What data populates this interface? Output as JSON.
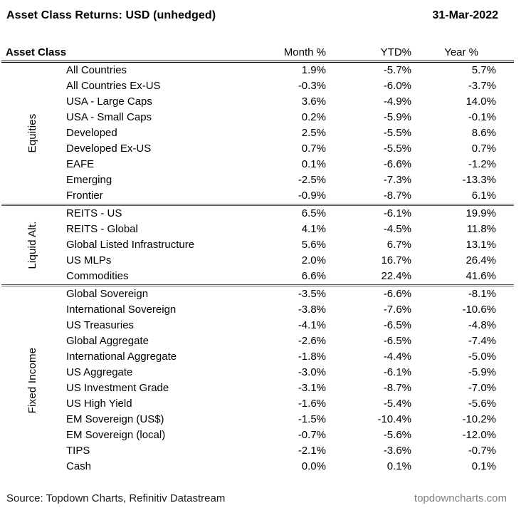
{
  "title": "Asset Class Returns: USD (unhedged)",
  "date": "31-Mar-2022",
  "chart_data": {
    "type": "table",
    "columns": [
      "Asset Class",
      "Month %",
      "YTD%",
      "Year %"
    ],
    "groups": [
      {
        "label": "Equities",
        "rows": [
          {
            "name": "All Countries",
            "month": "1.9%",
            "ytd": "-5.7%",
            "year": "5.7%"
          },
          {
            "name": "All Countries Ex-US",
            "month": "-0.3%",
            "ytd": "-6.0%",
            "year": "-3.7%"
          },
          {
            "name": "USA - Large Caps",
            "month": "3.6%",
            "ytd": "-4.9%",
            "year": "14.0%"
          },
          {
            "name": "USA - Small Caps",
            "month": "0.2%",
            "ytd": "-5.9%",
            "year": "-0.1%"
          },
          {
            "name": "Developed",
            "month": "2.5%",
            "ytd": "-5.5%",
            "year": "8.6%"
          },
          {
            "name": "Developed Ex-US",
            "month": "0.7%",
            "ytd": "-5.5%",
            "year": "0.7%"
          },
          {
            "name": "EAFE",
            "month": "0.1%",
            "ytd": "-6.6%",
            "year": "-1.2%"
          },
          {
            "name": "Emerging",
            "month": "-2.5%",
            "ytd": "-7.3%",
            "year": "-13.3%"
          },
          {
            "name": "Frontier",
            "month": "-0.9%",
            "ytd": "-8.7%",
            "year": "6.1%"
          }
        ]
      },
      {
        "label": "Liquid Alt.",
        "rows": [
          {
            "name": "REITS - US",
            "month": "6.5%",
            "ytd": "-6.1%",
            "year": "19.9%"
          },
          {
            "name": "REITS - Global",
            "month": "4.1%",
            "ytd": "-4.5%",
            "year": "11.8%"
          },
          {
            "name": "Global Listed Infrastructure",
            "month": "5.6%",
            "ytd": "6.7%",
            "year": "13.1%"
          },
          {
            "name": "US MLPs",
            "month": "2.0%",
            "ytd": "16.7%",
            "year": "26.4%"
          },
          {
            "name": "Commodities",
            "month": "6.6%",
            "ytd": "22.4%",
            "year": "41.6%"
          }
        ]
      },
      {
        "label": "Fixed Income",
        "rows": [
          {
            "name": "Global Sovereign",
            "month": "-3.5%",
            "ytd": "-6.6%",
            "year": "-8.1%"
          },
          {
            "name": "International Sovereign",
            "month": "-3.8%",
            "ytd": "-7.6%",
            "year": "-10.6%"
          },
          {
            "name": "US Treasuries",
            "month": "-4.1%",
            "ytd": "-6.5%",
            "year": "-4.8%"
          },
          {
            "name": "Global Aggregate",
            "month": "-2.6%",
            "ytd": "-6.5%",
            "year": "-7.4%"
          },
          {
            "name": "International Aggregate",
            "month": "-1.8%",
            "ytd": "-4.4%",
            "year": "-5.0%"
          },
          {
            "name": "US Aggregate",
            "month": "-3.0%",
            "ytd": "-6.1%",
            "year": "-5.9%"
          },
          {
            "name": "US Investment Grade",
            "month": "-3.1%",
            "ytd": "-8.7%",
            "year": "-7.0%"
          },
          {
            "name": "US High Yield",
            "month": "-1.6%",
            "ytd": "-5.4%",
            "year": "-5.6%"
          },
          {
            "name": "EM Sovereign (US$)",
            "month": "-1.5%",
            "ytd": "-10.4%",
            "year": "-10.2%"
          },
          {
            "name": "EM Sovereign (local)",
            "month": "-0.7%",
            "ytd": "-5.6%",
            "year": "-12.0%"
          },
          {
            "name": "TIPS",
            "month": "-2.1%",
            "ytd": "-3.6%",
            "year": "-0.7%"
          },
          {
            "name": "Cash",
            "month": "0.0%",
            "ytd": "0.1%",
            "year": "0.1%"
          }
        ]
      }
    ]
  },
  "footer": {
    "source": "Source: Topdown Charts, Refinitiv Datastream",
    "website": "topdowncharts.com"
  },
  "colors": {
    "text": "#000000",
    "website_gray": "#808080",
    "group_divider": "#595959",
    "header_divider": "#000000"
  }
}
